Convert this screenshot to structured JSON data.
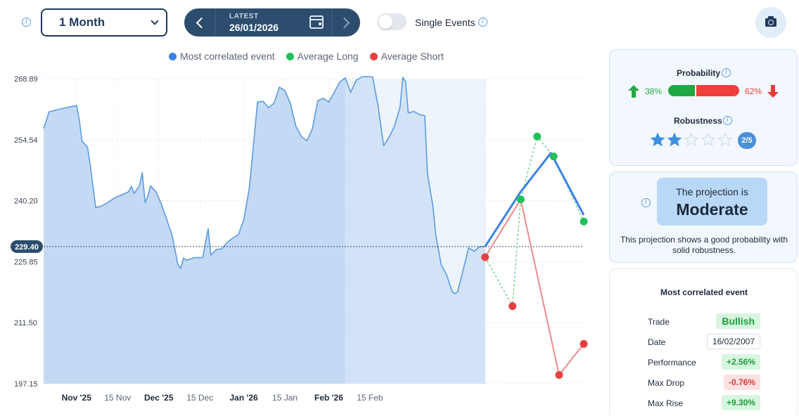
{
  "toolbar": {
    "period": "1 Month",
    "latest_label": "LATEST",
    "date": "26/01/2026",
    "single_events_label": "Single Events",
    "single_events_on": false
  },
  "legend": [
    {
      "label": "Most correlated event",
      "color": "#3b82e6"
    },
    {
      "label": "Average Long",
      "color": "#22c05a"
    },
    {
      "label": "Average Short",
      "color": "#e84040"
    }
  ],
  "chart_data": {
    "type": "area",
    "y_ticks": [
      "268.89",
      "254.54",
      "240.20",
      "225.85",
      "211.50",
      "197.15"
    ],
    "ylim": [
      197.15,
      268.89
    ],
    "x_ticks": [
      {
        "label": "Nov '25",
        "bold": true
      },
      {
        "label": "15 Nov",
        "bold": false
      },
      {
        "label": "Dec '25",
        "bold": true
      },
      {
        "label": "15 Dec",
        "bold": false
      },
      {
        "label": "Jan '26",
        "bold": true
      },
      {
        "label": "15 Jan",
        "bold": false
      },
      {
        "label": "Feb '26",
        "bold": true
      },
      {
        "label": "15 Feb",
        "bold": false
      }
    ],
    "current_price": "229.40",
    "current_price_value": 229.4,
    "history": [
      [
        0,
        257.2
      ],
      [
        2,
        261.1
      ],
      [
        5,
        261.6
      ],
      [
        9,
        262.2
      ],
      [
        12,
        262.6
      ],
      [
        13,
        259.3
      ],
      [
        14,
        254.2
      ],
      [
        16,
        252.8
      ],
      [
        17,
        248.6
      ],
      [
        19,
        238.6
      ],
      [
        21,
        238.9
      ],
      [
        23,
        239.6
      ],
      [
        26,
        240.9
      ],
      [
        29,
        241.7
      ],
      [
        31,
        242.3
      ],
      [
        32,
        243.6
      ],
      [
        33,
        241.9
      ],
      [
        35,
        243.8
      ],
      [
        36,
        246.8
      ],
      [
        37,
        239.8
      ],
      [
        38,
        241.2
      ],
      [
        39,
        243.7
      ],
      [
        41,
        242.3
      ],
      [
        43,
        239.3
      ],
      [
        45,
        235.6
      ],
      [
        47,
        231.8
      ],
      [
        49,
        225.1
      ],
      [
        50,
        224.3
      ],
      [
        51,
        226.7
      ],
      [
        52,
        226.2
      ],
      [
        55,
        226.8
      ],
      [
        58,
        226.8
      ],
      [
        60,
        233.6
      ],
      [
        61,
        227.4
      ],
      [
        63,
        228.7
      ],
      [
        65,
        228.9
      ],
      [
        67,
        230.4
      ],
      [
        69,
        231.4
      ],
      [
        71,
        232.2
      ],
      [
        73,
        235.7
      ],
      [
        75,
        243.1
      ],
      [
        76,
        249.7
      ],
      [
        78,
        263.4
      ],
      [
        80,
        263.6
      ],
      [
        82,
        262.1
      ],
      [
        84,
        263.1
      ],
      [
        86,
        266.9
      ],
      [
        88,
        266.1
      ],
      [
        90,
        263.1
      ],
      [
        92,
        257.7
      ],
      [
        94,
        255.3
      ],
      [
        96,
        254.3
      ],
      [
        98,
        257.1
      ],
      [
        100,
        263.7
      ],
      [
        102,
        264.3
      ],
      [
        104,
        263.4
      ],
      [
        106,
        265.7
      ],
      [
        108,
        268.1
      ],
      [
        110,
        269.1
      ],
      [
        112,
        265.7
      ],
      [
        114,
        268.5
      ],
      [
        116,
        269.3
      ],
      [
        118,
        269.4
      ],
      [
        120,
        269.3
      ],
      [
        122,
        262.4
      ],
      [
        124,
        253.1
      ],
      [
        126,
        255.1
      ],
      [
        128,
        257.8
      ],
      [
        130,
        262.2
      ],
      [
        131,
        269.2
      ],
      [
        132,
        268.2
      ],
      [
        133,
        260.8
      ],
      [
        135,
        261.2
      ],
      [
        137,
        260.5
      ],
      [
        139,
        260.2
      ],
      [
        140,
        246.5
      ],
      [
        142,
        238.8
      ],
      [
        143,
        232.2
      ],
      [
        145,
        225.1
      ],
      [
        147,
        222.7
      ],
      [
        149,
        218.8
      ],
      [
        150,
        218.3
      ],
      [
        151,
        218.8
      ],
      [
        153,
        223.9
      ],
      [
        155,
        229.1
      ],
      [
        157,
        228.3
      ],
      [
        159,
        229.4
      ],
      [
        161,
        229.4
      ]
    ],
    "projection_start_day": 161,
    "most_correlated": [
      [
        161,
        229.4
      ],
      [
        174,
        242.3
      ],
      [
        185,
        251.4
      ],
      [
        197,
        236.8
      ]
    ],
    "average_long": [
      [
        161,
        226.9
      ],
      [
        171,
        215.4
      ],
      [
        174,
        240.5
      ],
      [
        180,
        255.3
      ],
      [
        186,
        250.6
      ],
      [
        197,
        235.3
      ]
    ],
    "average_short": [
      [
        161,
        226.9
      ],
      [
        174,
        240.5
      ],
      [
        188,
        199.2
      ],
      [
        197,
        206.5
      ]
    ],
    "highlight_range": [
      110,
      161
    ]
  },
  "probability": {
    "title": "Probability",
    "long_pct": "38%",
    "short_pct": "62%",
    "long_value": 38
  },
  "robustness": {
    "title": "Robustness",
    "stars": 2,
    "max": 5,
    "badge": "2/5"
  },
  "projection": {
    "prefix": "The projection is",
    "level": "Moderate",
    "description": "This projection shows a good probability with solid robustness."
  },
  "correlated_event": {
    "title": "Most correlated event",
    "rows": [
      {
        "key": "Trade",
        "value": "Bullish",
        "style": "bull"
      },
      {
        "key": "Date",
        "value": "16/02/2007",
        "style": "date"
      },
      {
        "key": "Performance",
        "value": "+2.56%",
        "style": "pos"
      },
      {
        "key": "Max Drop",
        "value": "-0.76%",
        "style": "neg"
      },
      {
        "key": "Max Rise",
        "value": "+9.30%",
        "style": "pos"
      }
    ]
  }
}
